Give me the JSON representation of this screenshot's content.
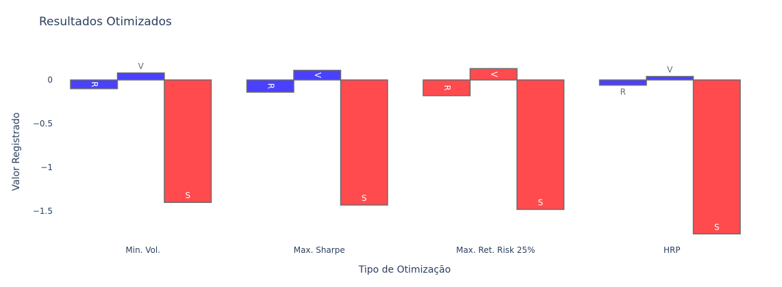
{
  "chart_data": {
    "type": "bar",
    "title": "Resultados Otimizados",
    "xlabel": "Tipo de Otimização",
    "ylabel": "Valor Registrado",
    "categories": [
      "Min. Vol.",
      "Max. Sharpe",
      "Max. Ret. Risk 25%",
      "HRP"
    ],
    "ylim": [
      -1.8,
      0.4
    ],
    "yticks": [
      0,
      -0.5,
      -1,
      -1.5
    ],
    "ytick_labels": [
      "0",
      "−0.5",
      "−1",
      "−1.5"
    ],
    "grid": false,
    "legend": "none",
    "bar_groups": [
      {
        "category": "Min. Vol.",
        "bars": [
          {
            "label": "R",
            "value": -0.1,
            "color": "#4a41ff"
          },
          {
            "label": "V",
            "value": 0.08,
            "color": "#4a41ff"
          },
          {
            "label": "S",
            "value": -1.4,
            "color": "#ff4a4e"
          }
        ]
      },
      {
        "category": "Max. Sharpe",
        "bars": [
          {
            "label": "R",
            "value": -0.14,
            "color": "#4a41ff"
          },
          {
            "label": "V",
            "value": 0.11,
            "color": "#4a41ff"
          },
          {
            "label": "S",
            "value": -1.43,
            "color": "#ff4a4e"
          }
        ]
      },
      {
        "category": "Max. Ret. Risk 25%",
        "bars": [
          {
            "label": "R",
            "value": -0.18,
            "color": "#ff4a4e"
          },
          {
            "label": "V",
            "value": 0.13,
            "color": "#ff4a4e"
          },
          {
            "label": "S",
            "value": -1.48,
            "color": "#ff4a4e"
          }
        ]
      },
      {
        "category": "HRP",
        "bars": [
          {
            "label": "R",
            "value": -0.06,
            "color": "#4a41ff"
          },
          {
            "label": "V",
            "value": 0.04,
            "color": "#4a41ff"
          },
          {
            "label": "S",
            "value": -1.76,
            "color": "#ff4a4e"
          }
        ]
      }
    ]
  },
  "colors": {
    "text": "#2a3f5f",
    "bar_outline": "#6b6b6b"
  }
}
